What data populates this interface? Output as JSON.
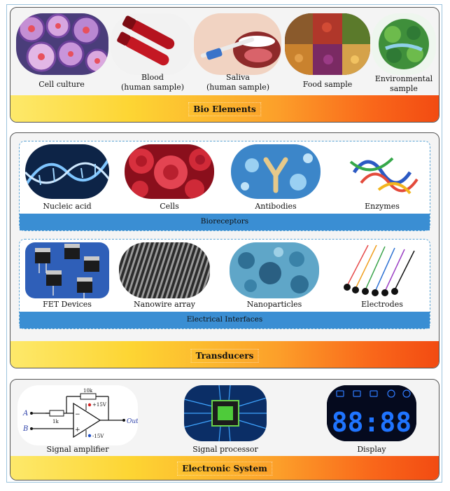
{
  "bio_elements": {
    "title": "Bio Elements",
    "items": [
      {
        "label": "Cell culture"
      },
      {
        "label": "Blood\n(human sample)"
      },
      {
        "label": "Saliva\n(human sample)"
      },
      {
        "label": "Food sample"
      },
      {
        "label": "Environmental\nsample"
      }
    ]
  },
  "transducers": {
    "title": "Transducers",
    "bioreceptors": {
      "title": "Bioreceptors",
      "items": [
        {
          "label": "Nucleic acid"
        },
        {
          "label": "Cells"
        },
        {
          "label": "Antibodies"
        },
        {
          "label": "Enzymes"
        }
      ]
    },
    "electrical_interfaces": {
      "title": "Electrical Interfaces",
      "items": [
        {
          "label": "FET Devices"
        },
        {
          "label": "Nanowire array"
        },
        {
          "label": "Nanoparticles"
        },
        {
          "label": "Electrodes"
        }
      ]
    }
  },
  "electronic_system": {
    "title": "Electronic System",
    "items": [
      {
        "label": "Signal amplifier"
      },
      {
        "label": "Signal processor"
      },
      {
        "label": "Display"
      }
    ],
    "amplifier": {
      "input_a": "A",
      "input_b": "B",
      "output": "Out",
      "feedback_resistor": "10k",
      "input_resistor": "1k",
      "pos_supply": "+15V",
      "neg_supply": "-15V"
    },
    "display_readout": "88:88"
  }
}
